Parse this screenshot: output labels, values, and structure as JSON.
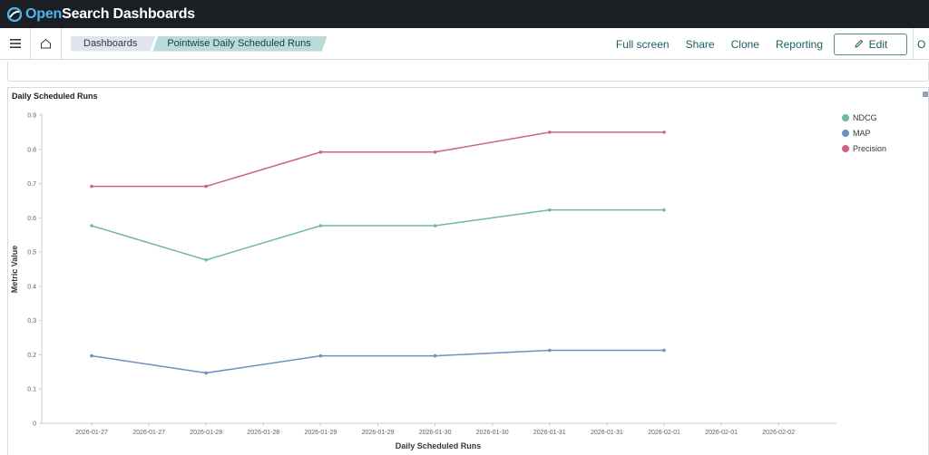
{
  "header": {
    "brand_open": "Open",
    "brand_rest": "Search Dashboards"
  },
  "nav": {
    "breadcrumbs": [
      "Dashboards",
      "Pointwise Daily Scheduled Runs"
    ],
    "actions": {
      "full_screen": "Full screen",
      "share": "Share",
      "clone": "Clone",
      "reporting": "Reporting",
      "edit": "Edit"
    },
    "more": "O"
  },
  "panel": {
    "title": "Daily Scheduled Runs"
  },
  "colors": {
    "ndcg": "#6dbb9b",
    "map": "#6d91c1",
    "precision": "#cb6680",
    "brand": "#4fb4e8",
    "link": "#1b5e63"
  },
  "chart_data": {
    "type": "line",
    "xlabel": "Daily Scheduled Runs",
    "ylabel": "Metric Value",
    "ylim": [
      0,
      0.9
    ],
    "yticks": [
      "0",
      "0.1",
      "0.2",
      "0.3",
      "0.4",
      "0.5",
      "0.6",
      "0.7",
      "0.8",
      "0.9"
    ],
    "xticks": [
      "2026-01-27",
      "2026-01-27",
      "2026-01-28",
      "2026-01-28",
      "2026-01-29",
      "2026-01-29",
      "2026-01-30",
      "2026-01-30",
      "2026-01-31",
      "2026-01-31",
      "2026-02-01",
      "2026-02-01",
      "2026-02-02"
    ],
    "x": [
      "2026-01-27",
      "2026-01-28",
      "2026-01-29",
      "2026-01-30",
      "2026-01-31",
      "2026-02-01"
    ],
    "series": [
      {
        "name": "NDCG",
        "values": [
          0.577,
          0.477,
          0.577,
          0.577,
          0.623,
          0.623
        ]
      },
      {
        "name": "MAP",
        "values": [
          0.197,
          0.147,
          0.197,
          0.197,
          0.213,
          0.213
        ]
      },
      {
        "name": "Precision",
        "values": [
          0.692,
          0.692,
          0.792,
          0.792,
          0.85,
          0.85
        ]
      }
    ],
    "legend": "top-right",
    "grid": false
  }
}
